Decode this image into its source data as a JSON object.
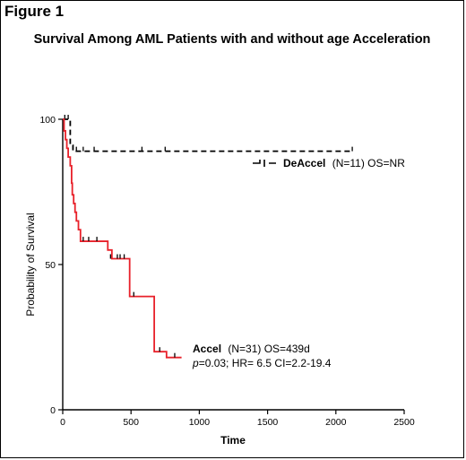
{
  "figure_label": "Figure 1",
  "colors": {
    "deaccel": "#000000",
    "accel": "#e8212a",
    "axis": "#000000"
  },
  "chart_data": {
    "type": "line",
    "title": "Survival Among AML Patients with and without age Acceleration",
    "xlabel": "Time",
    "ylabel": "Probability of Survival",
    "xlim": [
      0,
      2500
    ],
    "ylim": [
      0,
      100
    ],
    "xticks": [
      0,
      500,
      1000,
      1500,
      2000,
      2500
    ],
    "yticks": [
      0,
      50,
      100
    ],
    "grid": false,
    "series": [
      {
        "name": "DeAccel",
        "style": "dashed",
        "color": "#000000",
        "points": [
          [
            0,
            100
          ],
          [
            55,
            100
          ],
          [
            55,
            91
          ],
          [
            75,
            91
          ],
          [
            75,
            89
          ],
          [
            2120,
            89
          ]
        ],
        "censor": [
          [
            15,
            100
          ],
          [
            40,
            100
          ],
          [
            100,
            89
          ],
          [
            150,
            89
          ],
          [
            230,
            89
          ],
          [
            580,
            89
          ],
          [
            750,
            89
          ],
          [
            2120,
            89
          ]
        ],
        "legend": {
          "name": "DeAccel",
          "n": "(N=11) OS=NR"
        }
      },
      {
        "name": "Accel",
        "style": "solid",
        "color": "#e8212a",
        "points": [
          [
            0,
            100
          ],
          [
            10,
            100
          ],
          [
            10,
            96
          ],
          [
            20,
            96
          ],
          [
            20,
            93
          ],
          [
            30,
            93
          ],
          [
            30,
            90
          ],
          [
            40,
            90
          ],
          [
            40,
            87
          ],
          [
            55,
            87
          ],
          [
            55,
            84
          ],
          [
            65,
            84
          ],
          [
            65,
            78
          ],
          [
            70,
            78
          ],
          [
            70,
            74
          ],
          [
            80,
            74
          ],
          [
            80,
            71
          ],
          [
            90,
            71
          ],
          [
            90,
            68
          ],
          [
            100,
            68
          ],
          [
            100,
            65
          ],
          [
            115,
            65
          ],
          [
            115,
            62
          ],
          [
            130,
            62
          ],
          [
            130,
            58
          ],
          [
            330,
            58
          ],
          [
            330,
            55
          ],
          [
            360,
            55
          ],
          [
            360,
            52
          ],
          [
            490,
            52
          ],
          [
            490,
            39
          ],
          [
            670,
            39
          ],
          [
            670,
            20
          ],
          [
            760,
            20
          ],
          [
            760,
            18
          ],
          [
            870,
            18
          ]
        ],
        "censor": [
          [
            150,
            58
          ],
          [
            190,
            58
          ],
          [
            250,
            58
          ],
          [
            350,
            52
          ],
          [
            400,
            52
          ],
          [
            420,
            52
          ],
          [
            450,
            52
          ],
          [
            520,
            39
          ],
          [
            710,
            20
          ],
          [
            820,
            18
          ]
        ],
        "legend": {
          "name": "Accel",
          "n": "(N=31) OS=439d",
          "stats_p": "p",
          "stats_rest": "=0.03; HR= 6.5 CI=2.2-19.4"
        }
      }
    ]
  }
}
